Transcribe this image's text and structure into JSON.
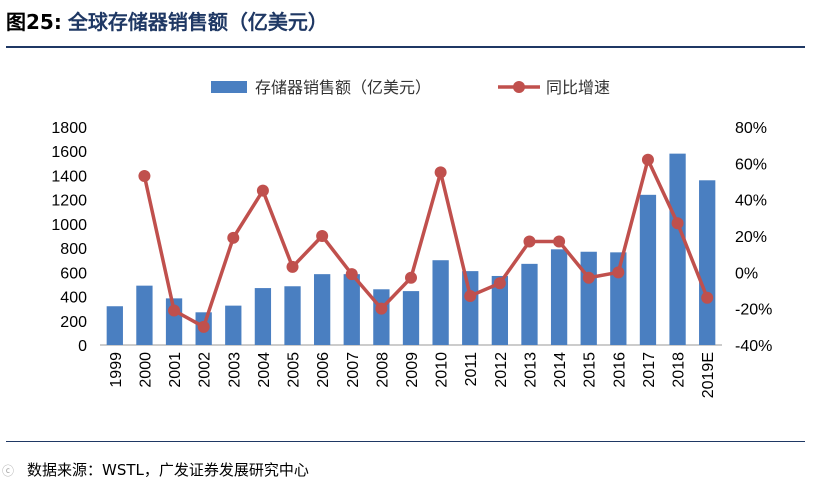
{
  "header": {
    "label": "图25:",
    "text": "全球存储器销售额（亿美元）"
  },
  "footer": {
    "source": "数据来源：WSTL，广发证券发展研究中心",
    "watermark": "ⓒ"
  },
  "colors": {
    "bar": "#4a7fc1",
    "line": "#c0504d",
    "rule": "#1f3864"
  },
  "chart_data": {
    "type": "bar+line",
    "title": "",
    "categories": [
      "1999",
      "2000",
      "2001",
      "2002",
      "2003",
      "2004",
      "2005",
      "2006",
      "2007",
      "2008",
      "2009",
      "2010",
      "2011",
      "2012",
      "2013",
      "2014",
      "2015",
      "2016",
      "2017",
      "2018",
      "2019E"
    ],
    "series": [
      {
        "name": "存储器销售额（亿美元）",
        "type": "bar",
        "axis": "left",
        "values": [
          320,
          490,
          385,
          270,
          325,
          470,
          485,
          585,
          585,
          460,
          445,
          700,
          610,
          570,
          670,
          790,
          770,
          765,
          1240,
          1580,
          1360
        ]
      },
      {
        "name": "同比增速",
        "type": "line",
        "axis": "right",
        "values": [
          null,
          53,
          -21,
          -30,
          19,
          45,
          3,
          20,
          -1,
          -20,
          -3,
          55,
          -13,
          -6,
          17,
          17,
          -3,
          0,
          62,
          27,
          -14
        ]
      }
    ],
    "left_axis": {
      "min": 0,
      "max": 1800,
      "ticks": [
        "0",
        "200",
        "400",
        "600",
        "800",
        "1000",
        "1200",
        "1400",
        "1600",
        "1800"
      ]
    },
    "right_axis": {
      "min": -40,
      "max": 80,
      "ticks": [
        "-40%",
        "-20%",
        "0%",
        "20%",
        "40%",
        "60%",
        "80%"
      ]
    },
    "legend": {
      "position": "top"
    }
  }
}
